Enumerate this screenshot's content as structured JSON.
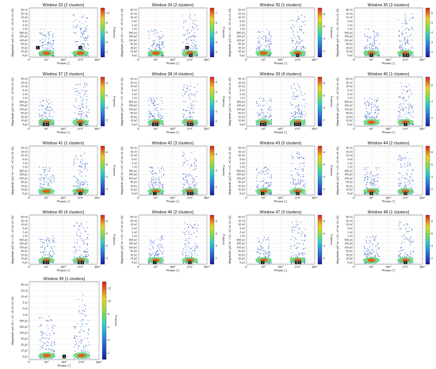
{
  "figure": {
    "shared": {
      "xlabel": "Phase (°)",
      "ylabel": "Magnitude (pC for < nC, nC for ≥1 nC)",
      "colorbar_label": "Pulses/s",
      "x_ticks": [
        "0°",
        "90°",
        "180°",
        "270°",
        "360°"
      ],
      "y_ticks": [
        "5 pC",
        "10 pC",
        "20 pC",
        "50 pC",
        "100 pC",
        "200 pC",
        "500 pC",
        "1 nC",
        "2 nC",
        "5 nC",
        "10 nC",
        "20 nC",
        "50 nC"
      ]
    }
  },
  "chart_data": [
    {
      "type": "heatmap",
      "title": "Window 33 (2 clusters)",
      "xlim": [
        0,
        360
      ],
      "colorbar_ticks": [
        "2",
        "4",
        "6",
        "8",
        "10"
      ],
      "clusters": [
        {
          "label": "1",
          "phase": 45,
          "magnitude": "20 pC"
        },
        {
          "label": "2",
          "phase": 270,
          "magnitude": "20 pC"
        }
      ]
    },
    {
      "type": "heatmap",
      "title": "Window 34 (2 clusters)",
      "xlim": [
        0,
        360
      ],
      "colorbar_ticks": [
        "3",
        "4",
        "5",
        "6",
        "7"
      ],
      "clusters": [
        {
          "label": "1",
          "phase": 255,
          "magnitude": "20 pC"
        },
        {
          "label": "2",
          "phase": 275,
          "magnitude": "15 pC"
        }
      ]
    },
    {
      "type": "heatmap",
      "title": "Window 35 (1 clusters)",
      "xlim": [
        0,
        360
      ],
      "colorbar_ticks": [
        "2",
        "4",
        "6",
        "8"
      ],
      "clusters": [
        {
          "label": "1",
          "phase": 270,
          "magnitude": "15 pC"
        }
      ]
    },
    {
      "type": "heatmap",
      "title": "Window 36 (3 clusters)",
      "xlim": [
        0,
        360
      ],
      "colorbar_ticks": [
        "2",
        "3",
        "4",
        "5",
        "6"
      ],
      "clusters": [
        {
          "label": "1",
          "phase": 90,
          "magnitude": "15 pC"
        },
        {
          "label": "2",
          "phase": 265,
          "magnitude": "15 pC"
        },
        {
          "label": "3",
          "phase": 280,
          "magnitude": "15 pC"
        }
      ]
    },
    {
      "type": "heatmap",
      "title": "Window 37 (3 clusters)",
      "xlim": [
        0,
        360
      ],
      "colorbar_ticks": [
        "2",
        "4",
        "6",
        "8"
      ],
      "clusters": [
        {
          "label": "1",
          "phase": 80,
          "magnitude": "15 pC"
        },
        {
          "label": "2",
          "phase": 95,
          "magnitude": "15 pC"
        },
        {
          "label": "3",
          "phase": 270,
          "magnitude": "15 pC"
        }
      ]
    },
    {
      "type": "heatmap",
      "title": "Window 38 (4 clusters)",
      "xlim": [
        0,
        360
      ],
      "colorbar_ticks": [
        "2",
        "3",
        "4",
        "5",
        "6"
      ],
      "clusters": [
        {
          "label": "1",
          "phase": 80,
          "magnitude": "15 pC"
        },
        {
          "label": "2",
          "phase": 95,
          "magnitude": "15 pC"
        },
        {
          "label": "3",
          "phase": 265,
          "magnitude": "15 pC"
        },
        {
          "label": "4",
          "phase": 280,
          "magnitude": "15 pC"
        }
      ]
    },
    {
      "type": "heatmap",
      "title": "Window 39 (4 clusters)",
      "xlim": [
        0,
        360
      ],
      "colorbar_ticks": [
        "2",
        "4",
        "6",
        "8"
      ],
      "clusters": [
        {
          "label": "1",
          "phase": 80,
          "magnitude": "15 pC"
        },
        {
          "label": "2",
          "phase": 95,
          "magnitude": "15 pC"
        },
        {
          "label": "3",
          "phase": 260,
          "magnitude": "15 pC"
        },
        {
          "label": "4",
          "phase": 280,
          "magnitude": "15 pC"
        }
      ]
    },
    {
      "type": "heatmap",
      "title": "Window 40 (1 clusters)",
      "xlim": [
        0,
        360
      ],
      "colorbar_ticks": [
        "2",
        "4",
        "6"
      ],
      "clusters": [
        {
          "label": "1",
          "phase": 270,
          "magnitude": "15 pC"
        }
      ]
    },
    {
      "type": "heatmap",
      "title": "Window 41 (1 clusters)",
      "xlim": [
        0,
        360
      ],
      "colorbar_ticks": [
        "2",
        "4",
        "6",
        "8"
      ],
      "clusters": [
        {
          "label": "1",
          "phase": 270,
          "magnitude": "15 pC"
        }
      ]
    },
    {
      "type": "heatmap",
      "title": "Window 42 (3 clusters)",
      "xlim": [
        0,
        360
      ],
      "colorbar_ticks": [
        "2",
        "4",
        "6"
      ],
      "clusters": [
        {
          "label": "1",
          "phase": 85,
          "magnitude": "15 pC"
        },
        {
          "label": "2",
          "phase": 265,
          "magnitude": "15 pC"
        },
        {
          "label": "3",
          "phase": 280,
          "magnitude": "15 pC"
        }
      ]
    },
    {
      "type": "heatmap",
      "title": "Window 43 (2 clusters)",
      "xlim": [
        0,
        360
      ],
      "colorbar_ticks": [
        "2",
        "4",
        "6",
        "8"
      ],
      "clusters": [
        {
          "label": "1",
          "phase": 85,
          "magnitude": "15 pC"
        },
        {
          "label": "2",
          "phase": 270,
          "magnitude": "15 pC"
        }
      ]
    },
    {
      "type": "heatmap",
      "title": "Window 44 (2 clusters)",
      "xlim": [
        0,
        360
      ],
      "colorbar_ticks": [
        "2",
        "4",
        "6",
        "8"
      ],
      "clusters": [
        {
          "label": "1",
          "phase": 90,
          "magnitude": "15 pC"
        },
        {
          "label": "2",
          "phase": 270,
          "magnitude": "15 pC"
        }
      ]
    },
    {
      "type": "heatmap",
      "title": "Window 45 (4 clusters)",
      "xlim": [
        0,
        360
      ],
      "colorbar_ticks": [
        "2",
        "4",
        "6",
        "8"
      ],
      "clusters": [
        {
          "label": "1",
          "phase": 80,
          "magnitude": "15 pC"
        },
        {
          "label": "2",
          "phase": 95,
          "magnitude": "15 pC"
        },
        {
          "label": "3",
          "phase": 265,
          "magnitude": "15 pC"
        },
        {
          "label": "4",
          "phase": 280,
          "magnitude": "15 pC"
        }
      ]
    },
    {
      "type": "heatmap",
      "title": "Window 46 (2 clusters)",
      "xlim": [
        0,
        360
      ],
      "colorbar_ticks": [
        "2",
        "4",
        "6",
        "8"
      ],
      "clusters": [
        {
          "label": "1",
          "phase": 85,
          "magnitude": "15 pC"
        },
        {
          "label": "2",
          "phase": 270,
          "magnitude": "15 pC"
        }
      ]
    },
    {
      "type": "heatmap",
      "title": "Window 47 (3 clusters)",
      "xlim": [
        0,
        360
      ],
      "colorbar_ticks": [
        "2",
        "4",
        "6",
        "8"
      ],
      "clusters": [
        {
          "label": "1",
          "phase": 85,
          "magnitude": "15 pC"
        },
        {
          "label": "2",
          "phase": 265,
          "magnitude": "15 pC"
        },
        {
          "label": "3",
          "phase": 280,
          "magnitude": "15 pC"
        }
      ]
    },
    {
      "type": "heatmap",
      "title": "Window 48 (1 clusters)",
      "xlim": [
        0,
        360
      ],
      "colorbar_ticks": [
        "2",
        "4",
        "6",
        "8"
      ],
      "clusters": [
        {
          "label": "1",
          "phase": 270,
          "magnitude": "15 pC"
        }
      ]
    },
    {
      "type": "heatmap",
      "title": "Window 49 (1 clusters)",
      "xlim": [
        0,
        360
      ],
      "colorbar_ticks": [
        "2",
        "4",
        "6",
        "8",
        "10",
        "12"
      ],
      "clusters": [
        {
          "label": "1",
          "phase": 180,
          "magnitude": "15 pC"
        }
      ]
    }
  ]
}
